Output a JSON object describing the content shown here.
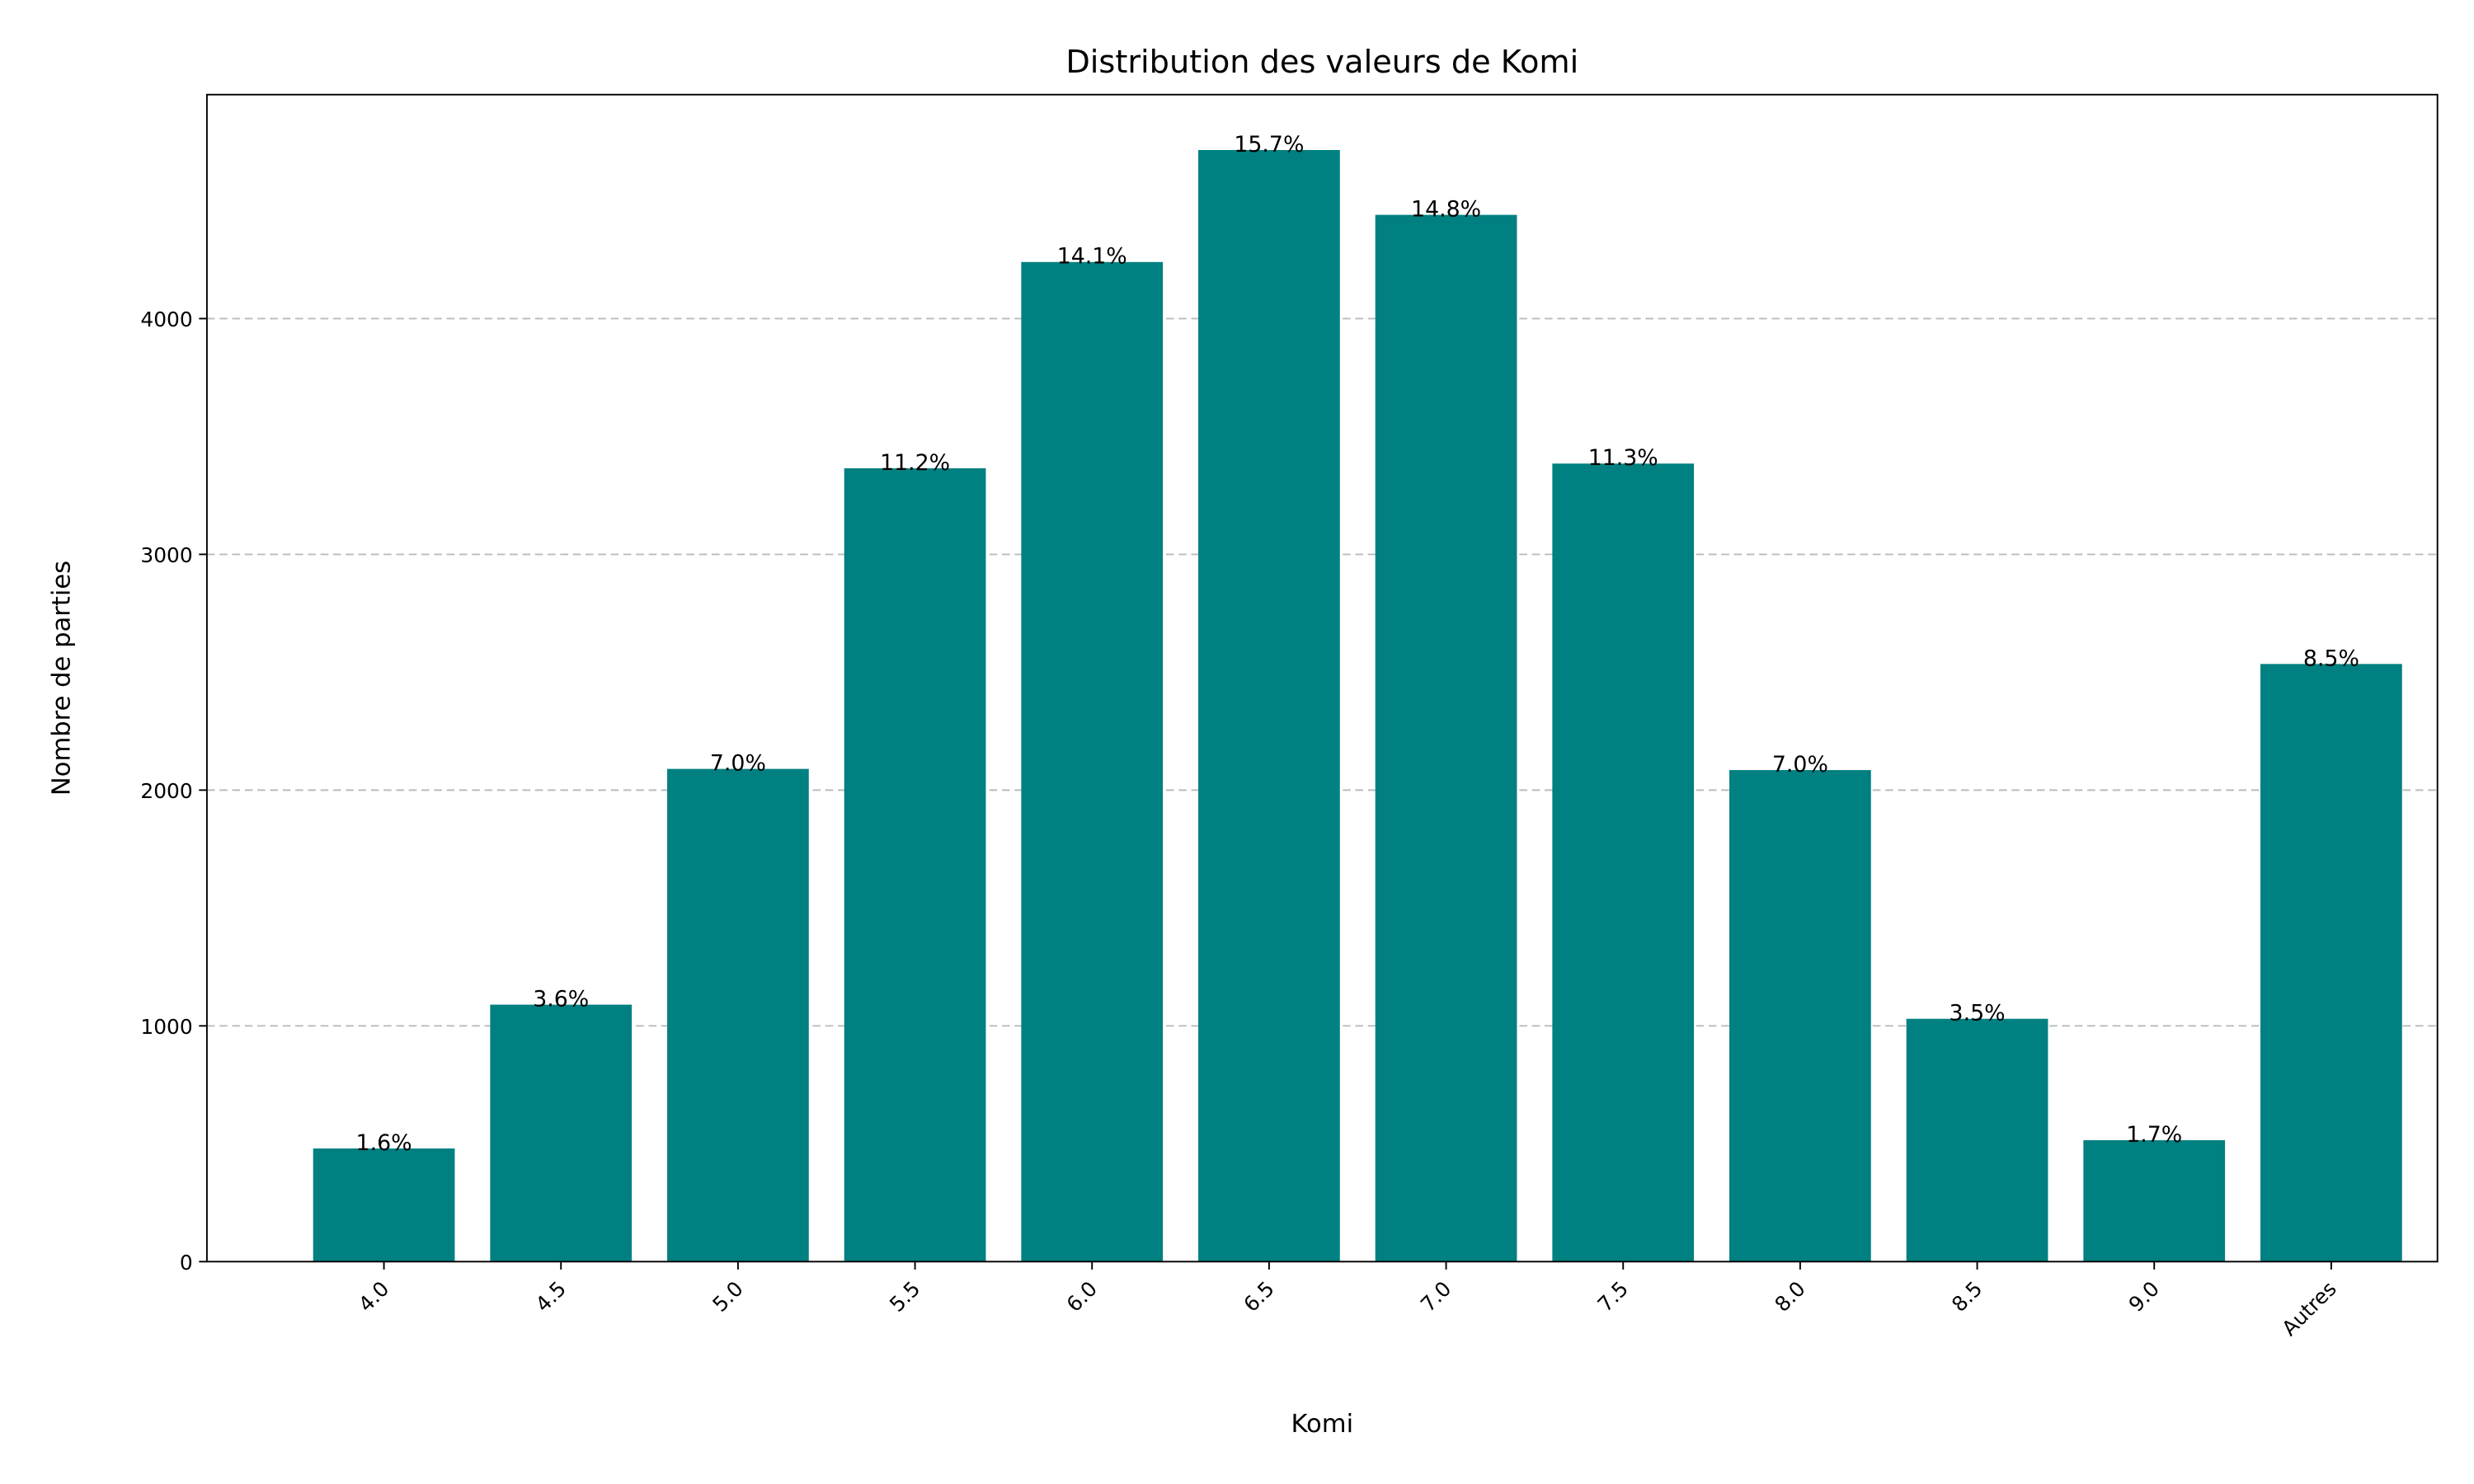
{
  "chart_data": {
    "type": "bar",
    "title": "Distribution des valeurs de Komi",
    "x_label": "Komi",
    "y_label": "Nombre de parties",
    "categories": [
      "4.0",
      "4.5",
      "5.0",
      "5.5",
      "6.0",
      "6.5",
      "7.0",
      "7.5",
      "8.0",
      "8.5",
      "9.0",
      "Autres"
    ],
    "values": [
      480,
      1090,
      2090,
      3365,
      4240,
      4715,
      4440,
      3385,
      2085,
      1030,
      515,
      2535
    ],
    "percent_labels": [
      "1.6%",
      "3.6%",
      "7.0%",
      "11.2%",
      "14.1%",
      "15.7%",
      "14.8%",
      "11.3%",
      "7.0%",
      "3.5%",
      "1.7%",
      "8.5%"
    ],
    "color": "#008080",
    "ylim": [
      0,
      4950
    ],
    "yticks": [
      0,
      1000,
      2000,
      3000,
      4000
    ],
    "grid": true
  }
}
